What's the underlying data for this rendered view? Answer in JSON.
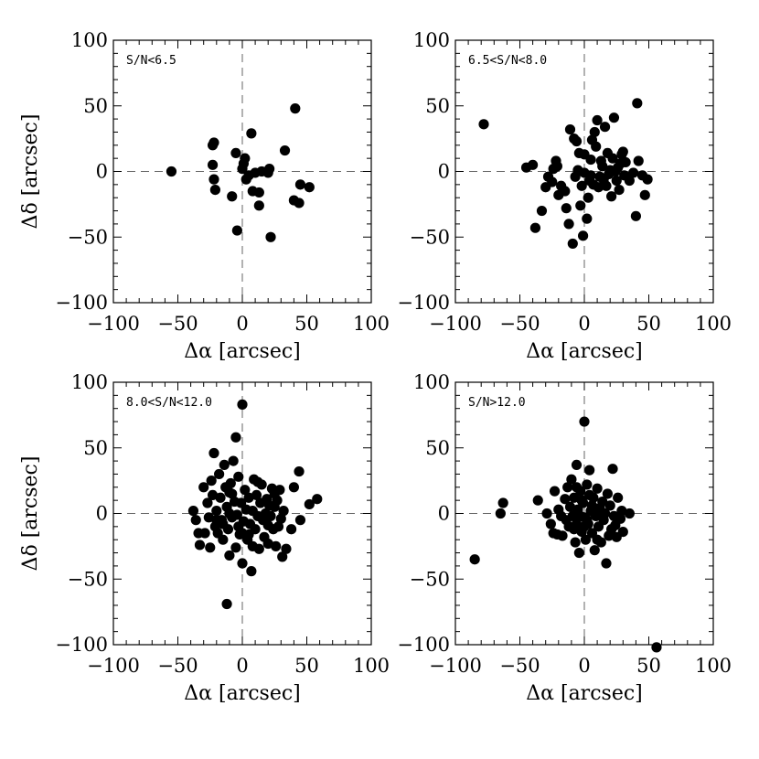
{
  "chart_data": [
    {
      "type": "scatter",
      "panel_label": "S/N<6.5",
      "xlabel": "Δα [arcsec]",
      "ylabel": "Δδ [arcsec]",
      "xlim": [
        -100,
        100
      ],
      "ylim": [
        -100,
        100
      ],
      "xticks": [
        "−100",
        "−50",
        "0",
        "50",
        "100"
      ],
      "yticks": [
        "100",
        "50",
        "0",
        "−50",
        "−100"
      ],
      "points": [
        [
          -55,
          0
        ],
        [
          -23,
          20
        ],
        [
          -22,
          22
        ],
        [
          -23,
          5
        ],
        [
          -22,
          -6
        ],
        [
          -21,
          -14
        ],
        [
          -8,
          -19
        ],
        [
          -5,
          14
        ],
        [
          -4,
          -45
        ],
        [
          0,
          2
        ],
        [
          1,
          6
        ],
        [
          2,
          10
        ],
        [
          3,
          -6
        ],
        [
          5,
          -3
        ],
        [
          7,
          29
        ],
        [
          8,
          -15
        ],
        [
          10,
          -1
        ],
        [
          13,
          -16
        ],
        [
          13,
          -26
        ],
        [
          15,
          0
        ],
        [
          20,
          -1
        ],
        [
          21,
          2
        ],
        [
          22,
          -50
        ],
        [
          33,
          16
        ],
        [
          40,
          -22
        ],
        [
          41,
          48
        ],
        [
          44,
          -24
        ],
        [
          45,
          -10
        ],
        [
          52,
          -12
        ]
      ]
    },
    {
      "type": "scatter",
      "panel_label": "6.5<S/N<8.0",
      "xlabel": "Δα [arcsec]",
      "ylabel": "",
      "xlim": [
        -100,
        100
      ],
      "ylim": [
        -100,
        100
      ],
      "xticks": [
        "−100",
        "−50",
        "0",
        "50",
        "100"
      ],
      "yticks": [
        "100",
        "50",
        "0",
        "−50",
        "−100"
      ],
      "points": [
        [
          -78,
          36
        ],
        [
          -45,
          3
        ],
        [
          -40,
          5
        ],
        [
          -38,
          -43
        ],
        [
          -33,
          -30
        ],
        [
          -30,
          -12
        ],
        [
          -28,
          -4
        ],
        [
          -25,
          -8
        ],
        [
          -24,
          2
        ],
        [
          -22,
          8
        ],
        [
          -21,
          4
        ],
        [
          -20,
          -18
        ],
        [
          -18,
          -11
        ],
        [
          -15,
          -15
        ],
        [
          -14,
          -28
        ],
        [
          -12,
          -40
        ],
        [
          -11,
          32
        ],
        [
          -9,
          -55
        ],
        [
          -8,
          25
        ],
        [
          -7,
          -4
        ],
        [
          -6,
          23
        ],
        [
          -5,
          1
        ],
        [
          -4,
          14
        ],
        [
          -3,
          -26
        ],
        [
          -2,
          -11
        ],
        [
          -1,
          -49
        ],
        [
          0,
          -1
        ],
        [
          0,
          13
        ],
        [
          2,
          -36
        ],
        [
          3,
          -20
        ],
        [
          4,
          -7
        ],
        [
          5,
          9
        ],
        [
          5,
          -3
        ],
        [
          6,
          24
        ],
        [
          7,
          -10
        ],
        [
          8,
          30
        ],
        [
          9,
          19
        ],
        [
          10,
          39
        ],
        [
          11,
          -12
        ],
        [
          12,
          -4
        ],
        [
          13,
          8
        ],
        [
          14,
          4
        ],
        [
          15,
          -6
        ],
        [
          16,
          34
        ],
        [
          17,
          -11
        ],
        [
          18,
          14
        ],
        [
          19,
          -2
        ],
        [
          20,
          1
        ],
        [
          21,
          -19
        ],
        [
          22,
          10
        ],
        [
          23,
          41
        ],
        [
          24,
          0
        ],
        [
          25,
          -7
        ],
        [
          26,
          3
        ],
        [
          27,
          -14
        ],
        [
          28,
          6
        ],
        [
          29,
          13
        ],
        [
          30,
          15
        ],
        [
          31,
          -3
        ],
        [
          32,
          7
        ],
        [
          35,
          -7
        ],
        [
          38,
          -1
        ],
        [
          40,
          -34
        ],
        [
          41,
          52
        ],
        [
          42,
          8
        ],
        [
          45,
          -3
        ],
        [
          47,
          -18
        ],
        [
          49,
          -6
        ]
      ]
    },
    {
      "type": "scatter",
      "panel_label": "8.0<S/N<12.0",
      "xlabel": "Δα [arcsec]",
      "ylabel": "Δδ [arcsec]",
      "xlim": [
        -100,
        100
      ],
      "ylim": [
        -100,
        100
      ],
      "xticks": [
        "−100",
        "−50",
        "0",
        "50",
        "100"
      ],
      "yticks": [
        "100",
        "50",
        "0",
        "−50",
        "−100"
      ],
      "points": [
        [
          -38,
          2
        ],
        [
          -36,
          -5
        ],
        [
          -34,
          -15
        ],
        [
          -33,
          -24
        ],
        [
          -30,
          20
        ],
        [
          -29,
          -15
        ],
        [
          -27,
          8
        ],
        [
          -26,
          -3
        ],
        [
          -25,
          -26
        ],
        [
          -24,
          25
        ],
        [
          -23,
          14
        ],
        [
          -22,
          46
        ],
        [
          -21,
          -10
        ],
        [
          -20,
          2
        ],
        [
          -19,
          -15
        ],
        [
          -18,
          30
        ],
        [
          -17,
          12
        ],
        [
          -16,
          -5
        ],
        [
          -15,
          -20
        ],
        [
          -14,
          37
        ],
        [
          -13,
          20
        ],
        [
          -12,
          -69
        ],
        [
          -12,
          5
        ],
        [
          -11,
          -12
        ],
        [
          -10,
          -32
        ],
        [
          -10,
          16
        ],
        [
          -9,
          23
        ],
        [
          -8,
          -3
        ],
        [
          -7,
          40
        ],
        [
          -6,
          9
        ],
        [
          -5,
          -26
        ],
        [
          -5,
          58
        ],
        [
          -4,
          -1
        ],
        [
          -3,
          28
        ],
        [
          -2,
          -16
        ],
        [
          -1,
          8
        ],
        [
          0,
          83
        ],
        [
          0,
          -38
        ],
        [
          1,
          -6
        ],
        [
          2,
          18
        ],
        [
          3,
          3
        ],
        [
          4,
          -20
        ],
        [
          5,
          12
        ],
        [
          6,
          -8
        ],
        [
          7,
          -44
        ],
        [
          8,
          2
        ],
        [
          9,
          26
        ],
        [
          10,
          -12
        ],
        [
          11,
          14
        ],
        [
          12,
          -2
        ],
        [
          13,
          -27
        ],
        [
          14,
          8
        ],
        [
          15,
          22
        ],
        [
          16,
          -5
        ],
        [
          17,
          -18
        ],
        [
          18,
          0
        ],
        [
          19,
          11
        ],
        [
          20,
          -23
        ],
        [
          21,
          6
        ],
        [
          22,
          -2
        ],
        [
          23,
          19
        ],
        [
          24,
          -12
        ],
        [
          25,
          5
        ],
        [
          26,
          -25
        ],
        [
          27,
          10
        ],
        [
          28,
          -10
        ],
        [
          29,
          18
        ],
        [
          30,
          -4
        ],
        [
          31,
          -33
        ],
        [
          32,
          2
        ],
        [
          34,
          -27
        ],
        [
          38,
          -12
        ],
        [
          40,
          20
        ],
        [
          44,
          32
        ],
        [
          45,
          -5
        ],
        [
          52,
          7
        ],
        [
          58,
          11
        ],
        [
          20,
          -9
        ],
        [
          -3,
          -10
        ],
        [
          5,
          -16
        ],
        [
          -8,
          15
        ],
        [
          12,
          24
        ],
        [
          -15,
          -8
        ],
        [
          0,
          -15
        ],
        [
          -20,
          -5
        ],
        [
          25,
          15
        ],
        [
          8,
          -25
        ],
        [
          -10,
          0
        ]
      ]
    },
    {
      "type": "scatter",
      "panel_label": "S/N>12.0",
      "xlabel": "Δα [arcsec]",
      "ylabel": "",
      "xlim": [
        -100,
        100
      ],
      "ylim": [
        -100,
        100
      ],
      "xticks": [
        "−100",
        "−50",
        "0",
        "50",
        "100"
      ],
      "yticks": [
        "100",
        "50",
        "0",
        "−50",
        "−100"
      ],
      "points": [
        [
          -85,
          -35
        ],
        [
          -65,
          0
        ],
        [
          -63,
          8
        ],
        [
          -36,
          10
        ],
        [
          -29,
          0
        ],
        [
          -26,
          -8
        ],
        [
          -24,
          -15
        ],
        [
          -23,
          17
        ],
        [
          -21,
          -16
        ],
        [
          -20,
          3
        ],
        [
          -18,
          -2
        ],
        [
          -17,
          -17
        ],
        [
          -15,
          11
        ],
        [
          -14,
          -5
        ],
        [
          -13,
          20
        ],
        [
          -12,
          -10
        ],
        [
          -11,
          5
        ],
        [
          -10,
          26
        ],
        [
          -9,
          -2
        ],
        [
          -8,
          12
        ],
        [
          -7,
          -22
        ],
        [
          -6,
          37
        ],
        [
          -6,
          -8
        ],
        [
          -5,
          3
        ],
        [
          -4,
          -30
        ],
        [
          -3,
          17
        ],
        [
          -2,
          -14
        ],
        [
          -1,
          8
        ],
        [
          0,
          -3
        ],
        [
          0,
          70
        ],
        [
          1,
          -20
        ],
        [
          2,
          22
        ],
        [
          3,
          -8
        ],
        [
          4,
          33
        ],
        [
          5,
          2
        ],
        [
          6,
          -15
        ],
        [
          7,
          12
        ],
        [
          8,
          -28
        ],
        [
          9,
          -2
        ],
        [
          10,
          19
        ],
        [
          11,
          -10
        ],
        [
          12,
          4
        ],
        [
          13,
          -22
        ],
        [
          14,
          9
        ],
        [
          15,
          -5
        ],
        [
          16,
          0
        ],
        [
          17,
          -38
        ],
        [
          18,
          15
        ],
        [
          19,
          -17
        ],
        [
          20,
          6
        ],
        [
          21,
          -12
        ],
        [
          22,
          34
        ],
        [
          23,
          -2
        ],
        [
          24,
          -9
        ],
        [
          25,
          -18
        ],
        [
          26,
          12
        ],
        [
          28,
          -4
        ],
        [
          29,
          2
        ],
        [
          30,
          -14
        ],
        [
          35,
          0
        ],
        [
          56,
          -102
        ],
        [
          2,
          -5
        ],
        [
          -3,
          -2
        ],
        [
          6,
          6
        ],
        [
          -8,
          -12
        ],
        [
          10,
          -20
        ],
        [
          -2,
          10
        ],
        [
          4,
          14
        ],
        [
          -6,
          20
        ],
        [
          8,
          0
        ],
        [
          0,
          -10
        ]
      ]
    }
  ]
}
